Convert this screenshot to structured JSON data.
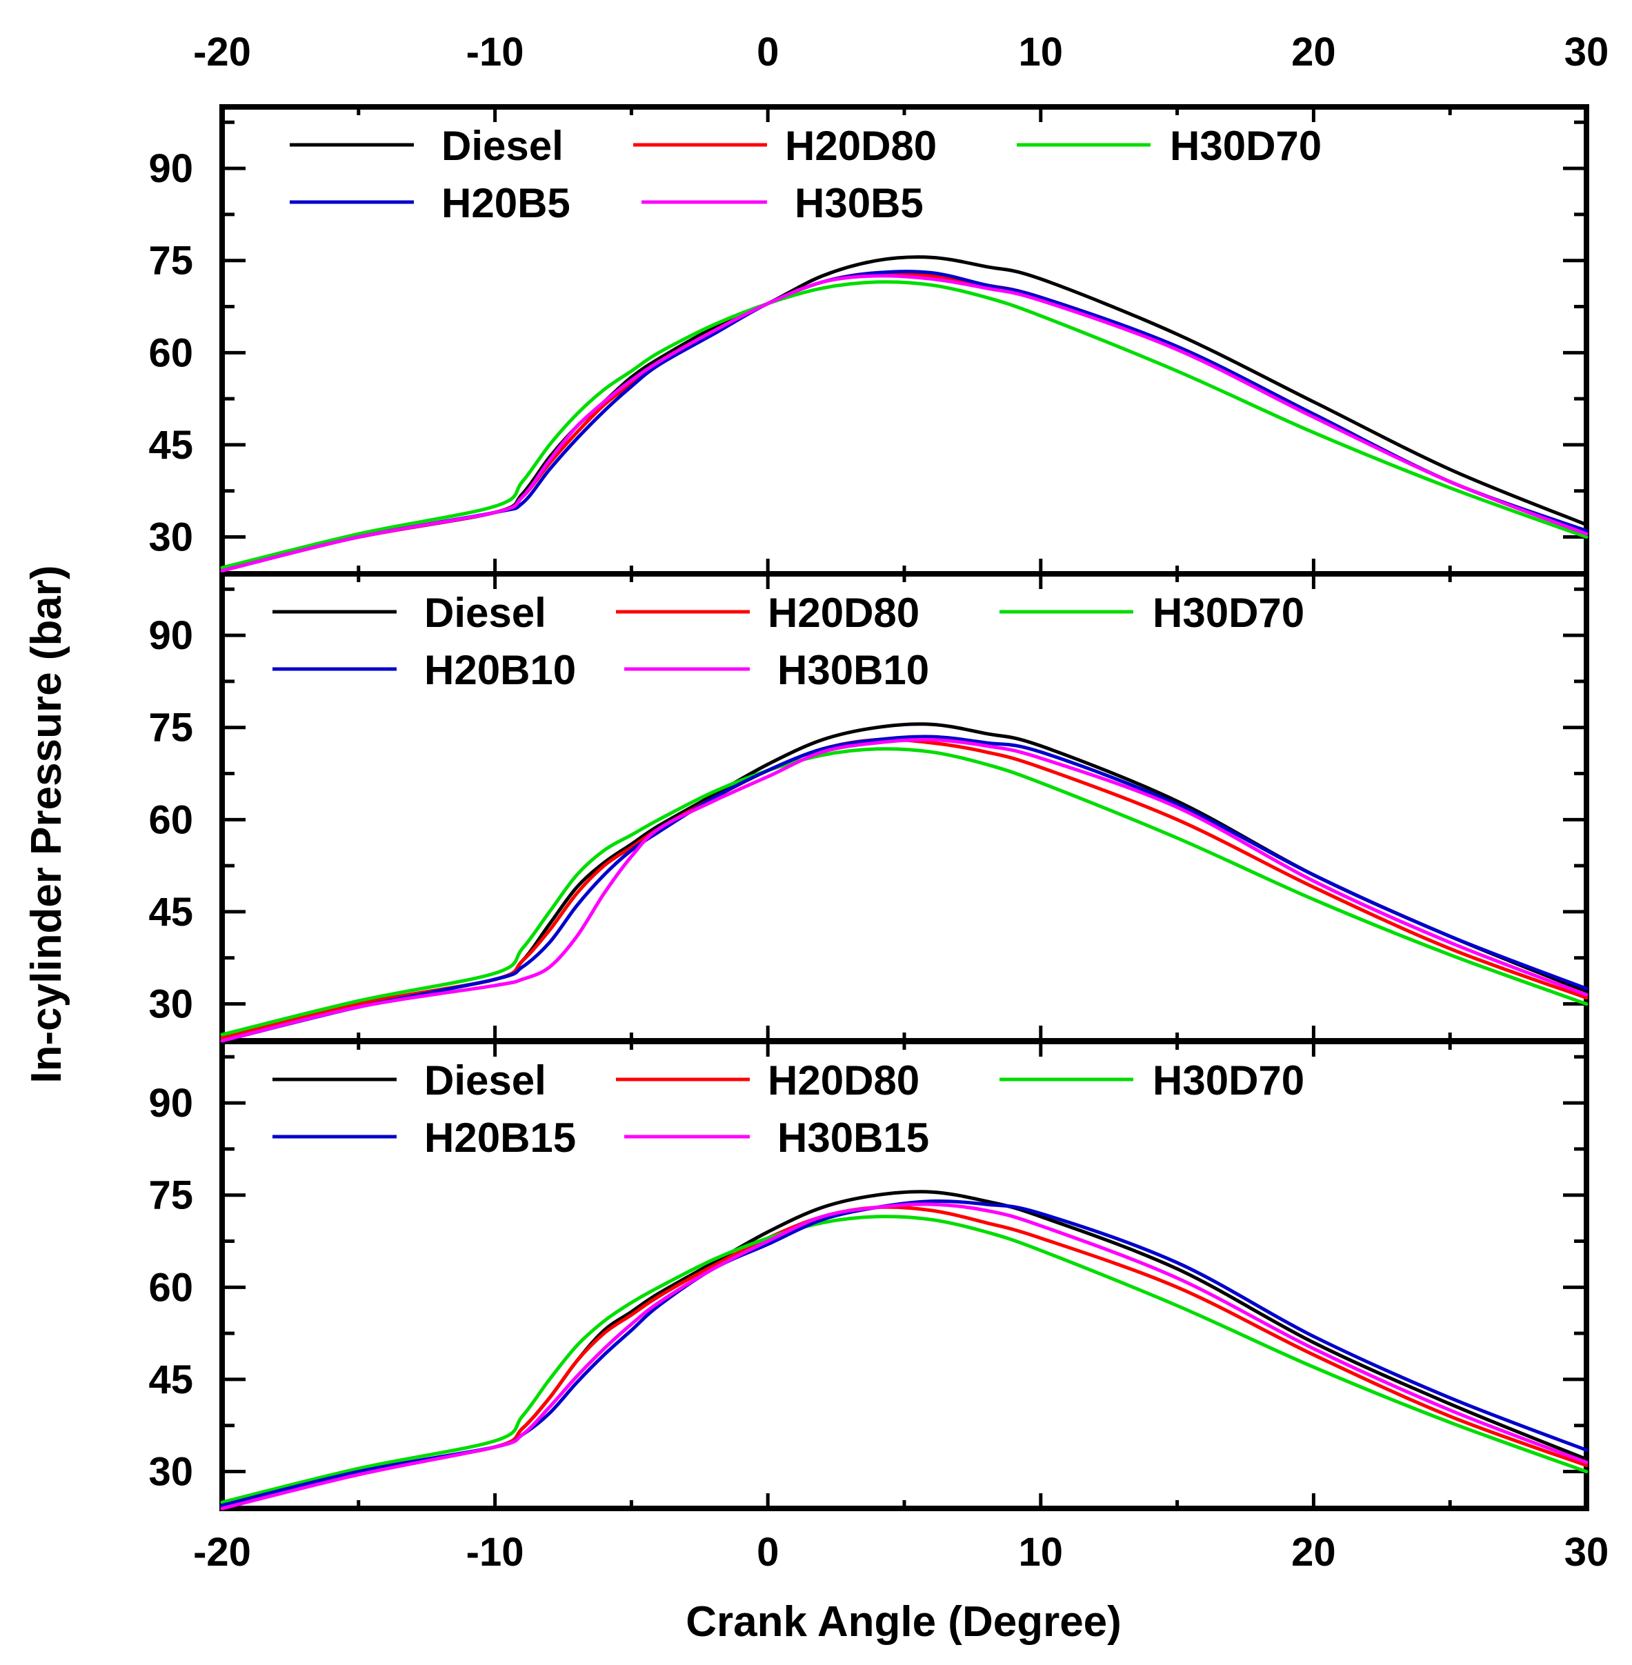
{
  "chart_data": {
    "type": "line",
    "xlabel": "Crank Angle (Degree)",
    "ylabel": "In-cylinder Pressure (bar)",
    "xlim": [
      -20,
      30
    ],
    "ylim": [
      24,
      100
    ],
    "xticks": [
      "-20",
      "-10",
      "0",
      "10",
      "20",
      "30"
    ],
    "xtick_values": [
      -20,
      -10,
      0,
      10,
      20,
      30
    ],
    "yticks": [
      "30",
      "45",
      "60",
      "75",
      "90"
    ],
    "ytick_values": [
      30,
      45,
      60,
      75,
      90
    ],
    "x": [
      -20,
      -15,
      -10,
      -9,
      -8,
      -7,
      -6,
      -5,
      -4,
      -2,
      0,
      2,
      4,
      6,
      8,
      10,
      15,
      20,
      25,
      30
    ],
    "colors": {
      "Diesel": "#000000",
      "H20D80": "#ff0000",
      "H30D70": "#00dd00",
      "blue": "#0000cc",
      "magenta": "#ff00ff"
    },
    "panels": [
      {
        "legend": [
          "Diesel",
          "H20D80",
          "H30D70",
          "H20B5",
          "H30B5"
        ],
        "series": [
          {
            "name": "Diesel",
            "color_key": "Diesel",
            "values": [
              25,
              30,
              34,
              37,
              43,
              48,
              52,
              56,
              59,
              64,
              68,
              72.5,
              75,
              75.5,
              74,
              72,
              63,
              52,
              41,
              32
            ]
          },
          {
            "name": "H20D80",
            "color_key": "H20D80",
            "values": [
              25,
              30,
              34,
              36.5,
              42,
              47,
              51.5,
              55,
              58.5,
              63.5,
              68,
              71.5,
              73,
              72.5,
              71,
              69,
              61,
              50,
              39,
              31
            ]
          },
          {
            "name": "H30D70",
            "color_key": "H30D70",
            "values": [
              25,
              30.5,
              35,
              39,
              45,
              50,
              54,
              57,
              60,
              64.5,
              68,
              70.5,
              71.5,
              71,
              69,
              66,
              57,
              47,
              38,
              30
            ]
          },
          {
            "name": "H20B5",
            "color_key": "blue",
            "values": [
              24.5,
              30,
              34,
              35.5,
              41,
              46,
              50.5,
              54.5,
              58,
              63,
              68,
              71.5,
              73,
              73,
              71,
              69,
              61,
              50,
              39,
              31
            ]
          },
          {
            "name": "H30B5",
            "color_key": "magenta",
            "values": [
              24.5,
              30,
              34,
              36.5,
              42.5,
              48,
              52,
              55.5,
              58.5,
              63.5,
              68,
              71.5,
              72.5,
              72,
              70.5,
              68.5,
              60.5,
              49.5,
              39,
              30.5
            ]
          }
        ]
      },
      {
        "legend": [
          "Diesel",
          "H20D80",
          "H30D70",
          "H20B10",
          "H30B10"
        ],
        "series": [
          {
            "name": "Diesel",
            "color_key": "Diesel",
            "values": [
              24.5,
              30,
              34,
              37,
              43,
              49,
              53,
              56,
              59,
              64,
              69,
              73,
              75,
              75.5,
              74,
              72,
              63,
              51,
              41,
              32
            ]
          },
          {
            "name": "H20D80",
            "color_key": "H20D80",
            "values": [
              24.5,
              30,
              34,
              37,
              42,
              48,
              52.5,
              55.5,
              58.5,
              63.5,
              68,
              71.5,
              73,
              72.5,
              71,
              68.5,
              60,
              49,
              39,
              31
            ]
          },
          {
            "name": "H30D70",
            "color_key": "H30D70",
            "values": [
              25,
              30.5,
              35,
              39,
              45,
              51,
              55,
              57.5,
              60,
              64.5,
              68,
              70.5,
              71.5,
              71,
              69,
              66,
              57,
              47,
              38,
              30
            ]
          },
          {
            "name": "H20B10",
            "color_key": "blue",
            "values": [
              24,
              29.5,
              34,
              36,
              40,
              46,
              51,
              55,
              58,
              63.5,
              68,
              71.5,
              73,
              73.5,
              72.5,
              71,
              62.5,
              51,
              41,
              32.5
            ]
          },
          {
            "name": "H30B10",
            "color_key": "magenta",
            "values": [
              24,
              29.5,
              33,
              34,
              36,
              41,
              48,
              54,
              58.5,
              63,
              67,
              71,
              72.5,
              73,
              72,
              70,
              62,
              50,
              40,
              31.5
            ]
          }
        ]
      },
      {
        "legend": [
          "Diesel",
          "H20D80",
          "H30D70",
          "H20B15",
          "H30B15"
        ],
        "series": [
          {
            "name": "Diesel",
            "color_key": "Diesel",
            "values": [
              24.5,
              30,
              34,
              37,
              42,
              48,
              53,
              56,
              59,
              64,
              69,
              73,
              75,
              75.5,
              74,
              71.5,
              63,
              51,
              41,
              32
            ]
          },
          {
            "name": "H20D80",
            "color_key": "H20D80",
            "values": [
              24.5,
              30,
              34,
              37,
              42,
              48,
              52.5,
              55.5,
              58.5,
              63.5,
              68,
              71.5,
              73,
              72.5,
              70.5,
              68,
              60,
              49,
              39,
              31
            ]
          },
          {
            "name": "H30D70",
            "color_key": "H30D70",
            "values": [
              25,
              30.5,
              35,
              39,
              45,
              50.5,
              54.5,
              57.5,
              60,
              64.5,
              68,
              70.5,
              71.5,
              71,
              69,
              66,
              57,
              47,
              38,
              30
            ]
          },
          {
            "name": "H20B15",
            "color_key": "blue",
            "values": [
              24.5,
              30,
              34,
              36,
              39.5,
              44.5,
              49,
              53,
              57,
              63,
              67,
              71,
              73,
              74,
              73.5,
              72,
              64,
              52,
              42,
              33.5
            ]
          },
          {
            "name": "H30B15",
            "color_key": "magenta",
            "values": [
              24,
              29.5,
              34,
              36,
              40.5,
              45.5,
              50,
              54,
              57.5,
              63,
              67.5,
              71.5,
              73,
              73.5,
              72.5,
              70,
              61.5,
              50,
              40,
              31.5
            ]
          }
        ]
      }
    ]
  }
}
